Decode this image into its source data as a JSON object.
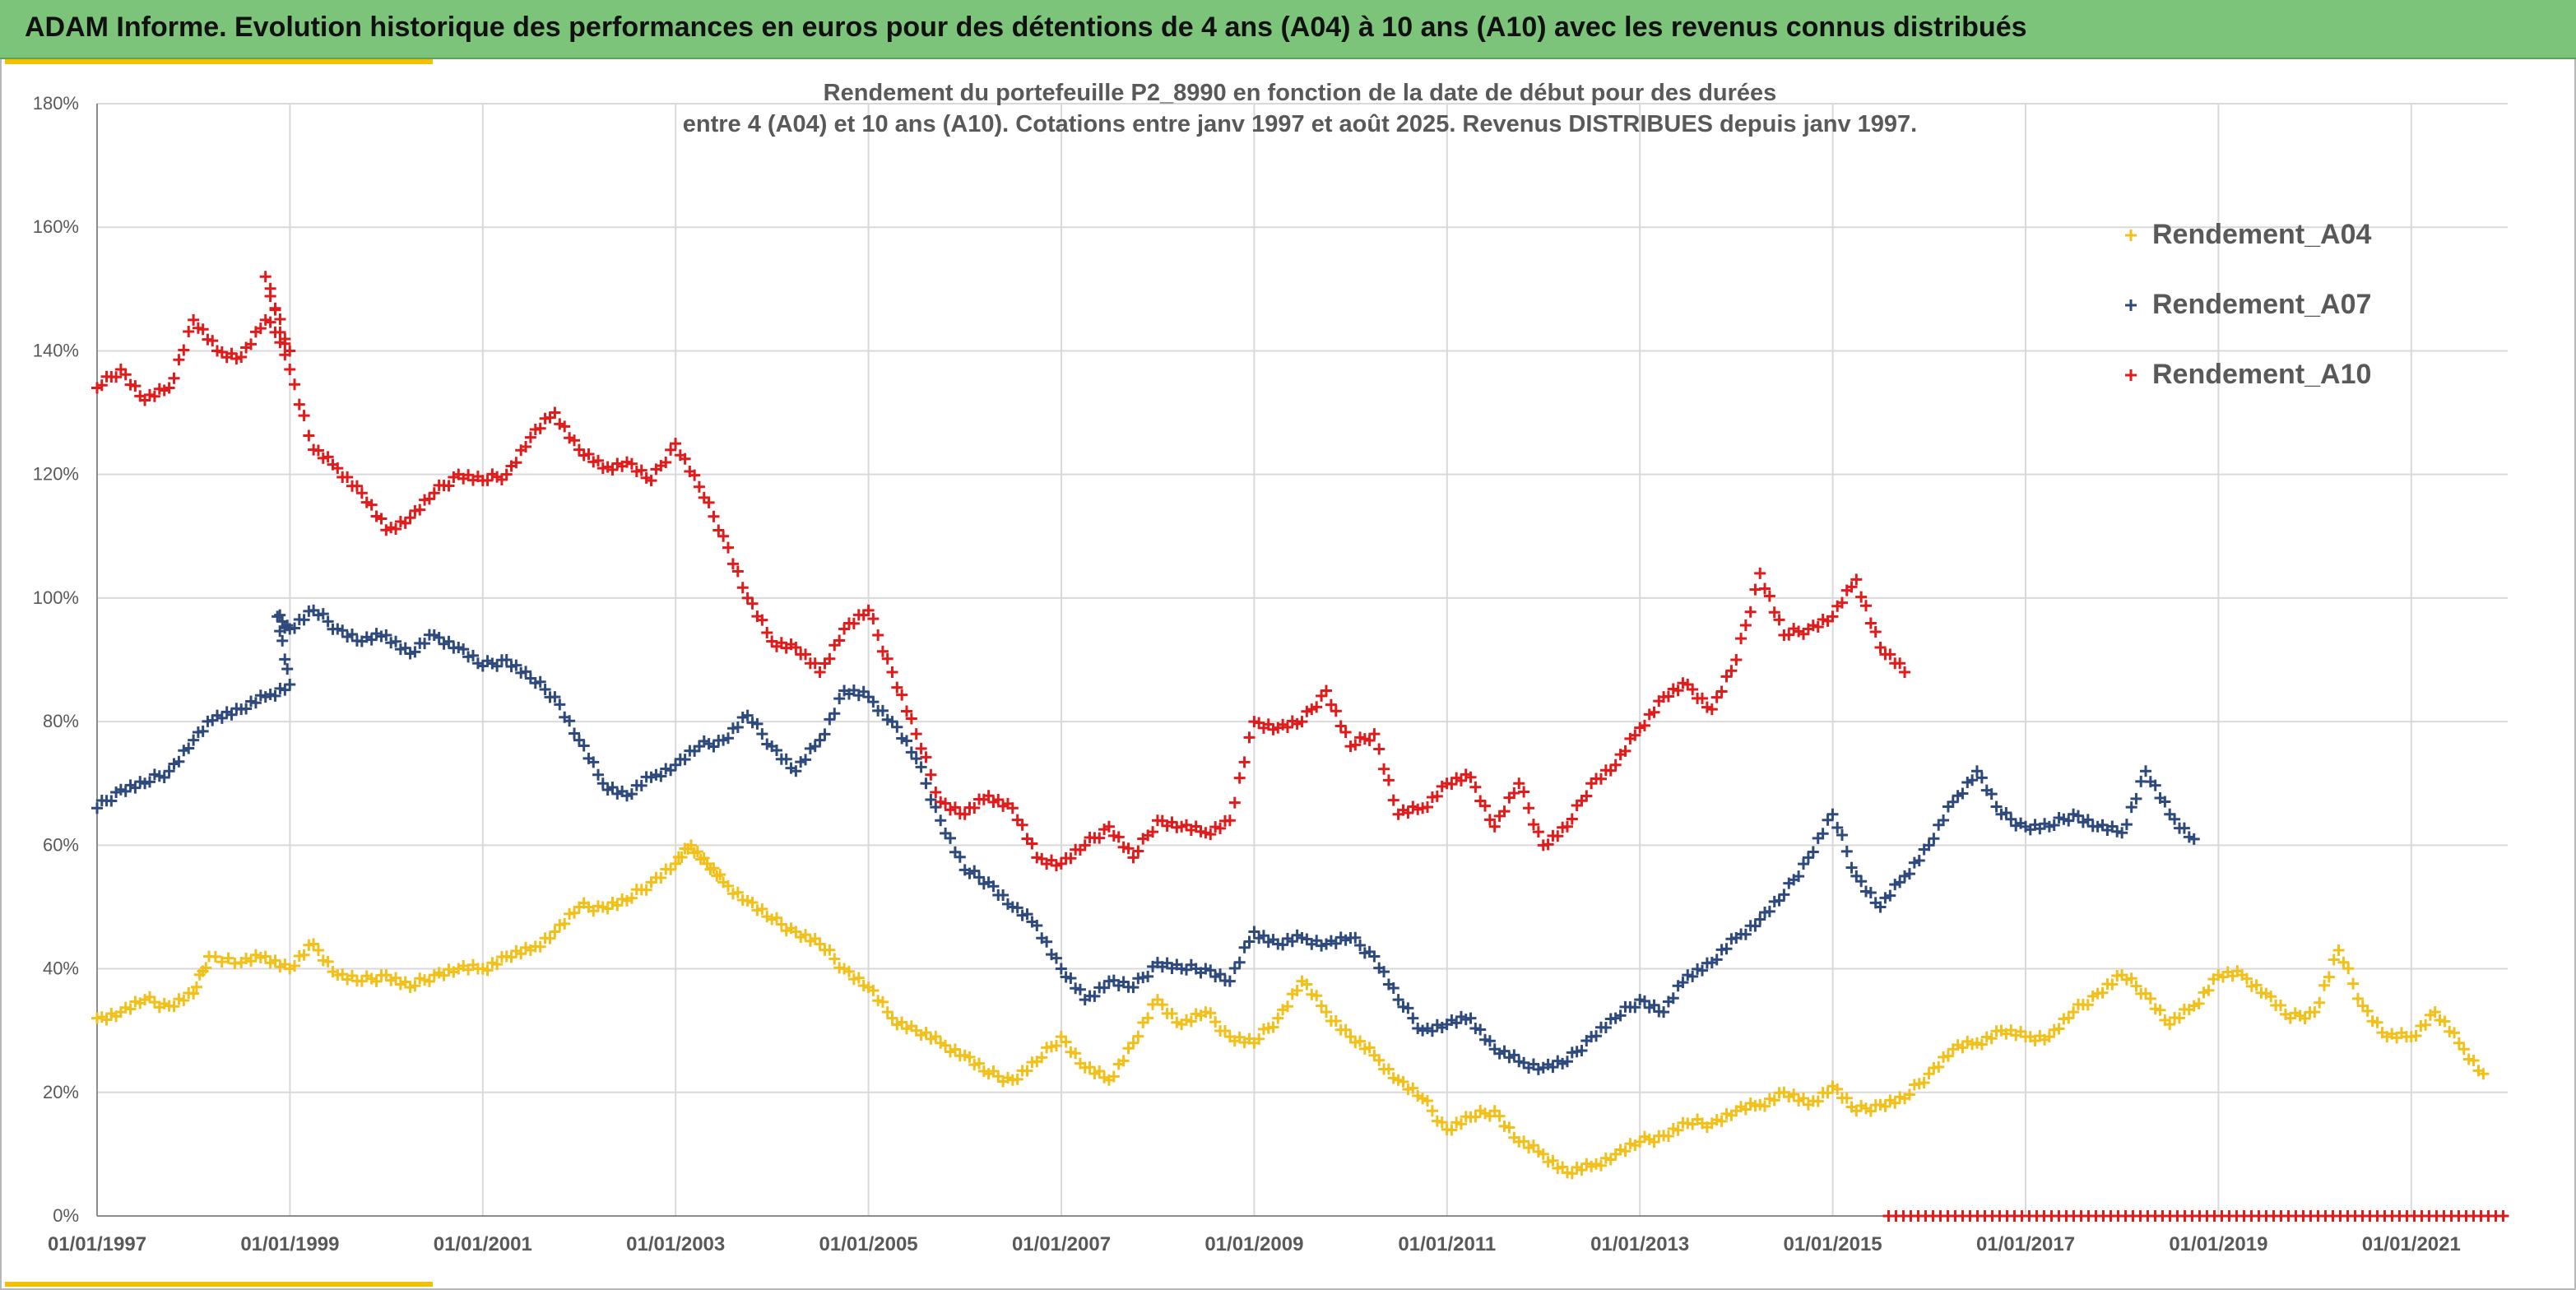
{
  "banner": {
    "title": "ADAM Informe. Evolution historique des performances en euros pour des détentions de 4 ans (A04) à 10 ans (A10) avec les revenus connus distribués"
  },
  "colors": {
    "banner_bg": "#7cc47a",
    "accent": "#f2c000",
    "A04": "#f2c01a",
    "A07": "#2e4a7d",
    "A10": "#e01b1b"
  },
  "chart_data": {
    "type": "scatter",
    "title_line1": "Rendement du portefeuille P2_8990 en fonction de la date de début pour des durées",
    "title_line2": "entre 4 (A04) et 10 ans (A10). Cotations entre janv 1997 et août 2025. Revenus DISTRIBUES depuis janv 1997.",
    "marker": "+",
    "grid": true,
    "legend_position": "top-right",
    "x_range": [
      "1997-01-01",
      "2022-01-01"
    ],
    "y_range": [
      0,
      180
    ],
    "y_unit": "%",
    "x_ticks": [
      "01/01/1997",
      "01/01/1999",
      "01/01/2001",
      "01/01/2003",
      "01/01/2005",
      "01/01/2007",
      "01/01/2009",
      "01/01/2011",
      "01/01/2013",
      "01/01/2015",
      "01/01/2017",
      "01/01/2019",
      "01/01/2021"
    ],
    "y_ticks": [
      "0%",
      "20%",
      "40%",
      "60%",
      "80%",
      "100%",
      "120%",
      "140%",
      "160%",
      "180%"
    ],
    "series": [
      {
        "name": "Rendement_A04",
        "color": "#f2c01a",
        "points": [
          [
            "1997-01-01",
            32
          ],
          [
            "1997-04-01",
            33
          ],
          [
            "1997-07-01",
            35
          ],
          [
            "1997-10-01",
            34
          ],
          [
            "1998-01-01",
            36
          ],
          [
            "1998-03-01",
            42
          ],
          [
            "1998-07-01",
            41
          ],
          [
            "1998-10-01",
            42
          ],
          [
            "1999-01-01",
            40
          ],
          [
            "1999-04-01",
            44
          ],
          [
            "1999-07-01",
            39
          ],
          [
            "1999-10-01",
            38
          ],
          [
            "2000-01-01",
            39
          ],
          [
            "2000-04-01",
            37
          ],
          [
            "2000-07-01",
            39
          ],
          [
            "2000-10-01",
            40
          ],
          [
            "2001-01-01",
            40
          ],
          [
            "2001-04-01",
            42
          ],
          [
            "2001-07-01",
            43
          ],
          [
            "2001-10-01",
            46
          ],
          [
            "2002-01-01",
            50
          ],
          [
            "2002-04-01",
            50
          ],
          [
            "2002-07-01",
            51
          ],
          [
            "2002-10-01",
            54
          ],
          [
            "2003-01-01",
            57
          ],
          [
            "2003-03-01",
            60
          ],
          [
            "2003-05-01",
            57
          ],
          [
            "2003-07-01",
            54
          ],
          [
            "2003-10-01",
            51
          ],
          [
            "2004-01-01",
            48
          ],
          [
            "2004-04-01",
            46
          ],
          [
            "2004-07-01",
            44
          ],
          [
            "2004-10-01",
            40
          ],
          [
            "2005-01-01",
            37
          ],
          [
            "2005-04-01",
            32
          ],
          [
            "2005-07-01",
            30
          ],
          [
            "2005-10-01",
            28
          ],
          [
            "2006-01-01",
            26
          ],
          [
            "2006-04-01",
            23
          ],
          [
            "2006-07-01",
            22
          ],
          [
            "2006-10-01",
            25
          ],
          [
            "2007-01-01",
            29
          ],
          [
            "2007-04-01",
            24
          ],
          [
            "2007-07-01",
            22
          ],
          [
            "2007-10-01",
            28
          ],
          [
            "2008-01-01",
            35
          ],
          [
            "2008-04-01",
            31
          ],
          [
            "2008-07-01",
            33
          ],
          [
            "2008-10-01",
            29
          ],
          [
            "2009-01-01",
            28
          ],
          [
            "2009-04-01",
            32
          ],
          [
            "2009-07-01",
            38
          ],
          [
            "2009-10-01",
            33
          ],
          [
            "2010-01-01",
            29
          ],
          [
            "2010-04-01",
            26
          ],
          [
            "2010-07-01",
            22
          ],
          [
            "2010-10-01",
            19
          ],
          [
            "2011-01-01",
            14
          ],
          [
            "2011-04-01",
            16
          ],
          [
            "2011-07-01",
            17
          ],
          [
            "2011-10-01",
            12
          ],
          [
            "2012-01-01",
            10
          ],
          [
            "2012-04-01",
            7
          ],
          [
            "2012-07-01",
            8
          ],
          [
            "2012-10-01",
            10
          ],
          [
            "2013-01-01",
            12
          ],
          [
            "2013-04-01",
            13
          ],
          [
            "2013-07-01",
            15
          ],
          [
            "2013-10-01",
            15
          ],
          [
            "2014-01-01",
            17
          ],
          [
            "2014-04-01",
            18
          ],
          [
            "2014-07-01",
            20
          ],
          [
            "2014-10-01",
            18
          ],
          [
            "2015-01-01",
            21
          ],
          [
            "2015-04-01",
            17
          ],
          [
            "2015-07-01",
            18
          ],
          [
            "2015-10-01",
            19
          ],
          [
            "2016-01-01",
            23
          ],
          [
            "2016-04-01",
            27
          ],
          [
            "2016-07-01",
            28
          ],
          [
            "2016-10-01",
            30
          ],
          [
            "2017-01-01",
            29
          ],
          [
            "2017-04-01",
            29
          ],
          [
            "2017-07-01",
            33
          ],
          [
            "2017-10-01",
            36
          ],
          [
            "2018-01-01",
            39
          ],
          [
            "2018-04-01",
            36
          ],
          [
            "2018-07-01",
            31
          ],
          [
            "2018-10-01",
            34
          ],
          [
            "2019-01-01",
            39
          ],
          [
            "2019-04-01",
            39
          ],
          [
            "2019-07-01",
            36
          ],
          [
            "2019-10-01",
            32
          ],
          [
            "2020-01-01",
            33
          ],
          [
            "2020-04-01",
            43
          ],
          [
            "2020-07-01",
            34
          ],
          [
            "2020-10-01",
            29
          ],
          [
            "2021-01-01",
            29
          ],
          [
            "2021-04-01",
            33
          ],
          [
            "2021-07-01",
            28
          ],
          [
            "2021-10-01",
            23
          ]
        ]
      },
      {
        "name": "Rendement_A07",
        "color": "#2e4a7d",
        "points": [
          [
            "1997-01-01",
            66
          ],
          [
            "1997-04-01",
            69
          ],
          [
            "1997-07-01",
            70
          ],
          [
            "1997-10-01",
            72
          ],
          [
            "1998-01-01",
            77
          ],
          [
            "1998-04-01",
            81
          ],
          [
            "1998-07-01",
            82
          ],
          [
            "1998-10-01",
            84
          ],
          [
            "1999-01-01",
            86
          ],
          [
            "1998-11-15",
            97
          ],
          [
            "1999-01-01",
            95
          ],
          [
            "1999-04-01",
            98
          ],
          [
            "1999-07-01",
            95
          ],
          [
            "1999-10-01",
            93
          ],
          [
            "2000-01-01",
            94
          ],
          [
            "2000-04-01",
            91
          ],
          [
            "2000-07-01",
            94
          ],
          [
            "2000-10-01",
            92
          ],
          [
            "2001-01-01",
            89
          ],
          [
            "2001-04-01",
            90
          ],
          [
            "2001-07-01",
            87
          ],
          [
            "2001-10-01",
            84
          ],
          [
            "2002-01-01",
            77
          ],
          [
            "2002-04-01",
            70
          ],
          [
            "2002-07-01",
            68
          ],
          [
            "2002-10-01",
            71
          ],
          [
            "2003-01-01",
            73
          ],
          [
            "2003-04-01",
            76
          ],
          [
            "2003-07-01",
            77
          ],
          [
            "2003-10-01",
            81
          ],
          [
            "2004-01-01",
            76
          ],
          [
            "2004-04-01",
            72
          ],
          [
            "2004-07-01",
            77
          ],
          [
            "2004-10-01",
            85
          ],
          [
            "2005-01-01",
            84
          ],
          [
            "2005-04-01",
            80
          ],
          [
            "2005-07-01",
            74
          ],
          [
            "2005-10-01",
            64
          ],
          [
            "2006-01-01",
            56
          ],
          [
            "2006-04-01",
            54
          ],
          [
            "2006-07-01",
            50
          ],
          [
            "2006-10-01",
            47
          ],
          [
            "2007-01-01",
            40
          ],
          [
            "2007-04-01",
            35
          ],
          [
            "2007-07-01",
            38
          ],
          [
            "2007-10-01",
            37
          ],
          [
            "2008-01-01",
            41
          ],
          [
            "2008-04-01",
            40
          ],
          [
            "2008-07-01",
            40
          ],
          [
            "2008-10-01",
            38
          ],
          [
            "2009-01-01",
            46
          ],
          [
            "2009-04-01",
            44
          ],
          [
            "2009-07-01",
            45
          ],
          [
            "2009-10-01",
            44
          ],
          [
            "2010-01-01",
            45
          ],
          [
            "2010-04-01",
            42
          ],
          [
            "2010-07-01",
            35
          ],
          [
            "2010-10-01",
            30
          ],
          [
            "2011-01-01",
            31
          ],
          [
            "2011-04-01",
            32
          ],
          [
            "2011-07-01",
            27
          ],
          [
            "2011-10-01",
            25
          ],
          [
            "2012-01-01",
            24
          ],
          [
            "2012-04-01",
            25
          ],
          [
            "2012-07-01",
            29
          ],
          [
            "2012-10-01",
            32
          ],
          [
            "2013-01-01",
            35
          ],
          [
            "2013-04-01",
            33
          ],
          [
            "2013-07-01",
            39
          ],
          [
            "2013-10-01",
            41
          ],
          [
            "2014-01-01",
            45
          ],
          [
            "2014-04-01",
            48
          ],
          [
            "2014-07-01",
            52
          ],
          [
            "2014-10-01",
            58
          ],
          [
            "2015-01-01",
            65
          ],
          [
            "2015-04-01",
            55
          ],
          [
            "2015-07-01",
            50
          ],
          [
            "2015-10-01",
            55
          ],
          [
            "2016-01-01",
            60
          ],
          [
            "2016-04-01",
            67
          ],
          [
            "2016-07-01",
            72
          ],
          [
            "2016-10-01",
            65
          ],
          [
            "2017-01-01",
            63
          ],
          [
            "2017-04-01",
            63
          ],
          [
            "2017-07-01",
            65
          ],
          [
            "2017-10-01",
            63
          ],
          [
            "2018-01-01",
            62
          ],
          [
            "2018-04-01",
            72
          ],
          [
            "2018-07-01",
            65
          ],
          [
            "2018-10-01",
            61
          ]
        ]
      },
      {
        "name": "Rendement_A10",
        "color": "#e01b1b",
        "points": [
          [
            "1997-01-01",
            134
          ],
          [
            "1997-04-01",
            137
          ],
          [
            "1997-07-01",
            132
          ],
          [
            "1997-10-01",
            134
          ],
          [
            "1998-01-01",
            145
          ],
          [
            "1998-04-01",
            140
          ],
          [
            "1998-07-01",
            139
          ],
          [
            "1998-10-01",
            145
          ],
          [
            "1999-01-01",
            140
          ],
          [
            "1998-10-01",
            152
          ],
          [
            "1999-01-01",
            137
          ],
          [
            "1999-04-01",
            124
          ],
          [
            "1999-07-01",
            121
          ],
          [
            "1999-10-01",
            117
          ],
          [
            "2000-01-01",
            111
          ],
          [
            "2000-04-01",
            113
          ],
          [
            "2000-07-01",
            117
          ],
          [
            "2000-10-01",
            120
          ],
          [
            "2001-01-01",
            119
          ],
          [
            "2001-04-01",
            120
          ],
          [
            "2001-07-01",
            126
          ],
          [
            "2001-10-01",
            130
          ],
          [
            "2002-01-01",
            124
          ],
          [
            "2002-04-01",
            121
          ],
          [
            "2002-07-01",
            122
          ],
          [
            "2002-10-01",
            119
          ],
          [
            "2003-01-01",
            125
          ],
          [
            "2003-04-01",
            118
          ],
          [
            "2003-07-01",
            110
          ],
          [
            "2003-10-01",
            100
          ],
          [
            "2004-01-01",
            93
          ],
          [
            "2004-04-01",
            92
          ],
          [
            "2004-07-01",
            88
          ],
          [
            "2004-10-01",
            95
          ],
          [
            "2005-01-01",
            98
          ],
          [
            "2005-04-01",
            88
          ],
          [
            "2005-07-01",
            78
          ],
          [
            "2005-10-01",
            67
          ],
          [
            "2006-01-01",
            65
          ],
          [
            "2006-04-01",
            68
          ],
          [
            "2006-07-01",
            66
          ],
          [
            "2006-10-01",
            58
          ],
          [
            "2007-01-01",
            57
          ],
          [
            "2007-04-01",
            60
          ],
          [
            "2007-07-01",
            63
          ],
          [
            "2007-10-01",
            58
          ],
          [
            "2008-01-01",
            64
          ],
          [
            "2008-04-01",
            63
          ],
          [
            "2008-07-01",
            62
          ],
          [
            "2008-10-01",
            64
          ],
          [
            "2009-01-01",
            80
          ],
          [
            "2009-04-01",
            79
          ],
          [
            "2009-07-01",
            80
          ],
          [
            "2009-10-01",
            85
          ],
          [
            "2010-01-01",
            76
          ],
          [
            "2010-04-01",
            78
          ],
          [
            "2010-07-01",
            65
          ],
          [
            "2010-10-01",
            66
          ],
          [
            "2011-01-01",
            70
          ],
          [
            "2011-04-01",
            71
          ],
          [
            "2011-07-01",
            63
          ],
          [
            "2011-10-01",
            70
          ],
          [
            "2012-01-01",
            60
          ],
          [
            "2012-04-01",
            63
          ],
          [
            "2012-07-01",
            70
          ],
          [
            "2012-10-01",
            73
          ],
          [
            "2013-01-01",
            79
          ],
          [
            "2013-04-01",
            84
          ],
          [
            "2013-07-01",
            86
          ],
          [
            "2013-10-01",
            82
          ],
          [
            "2014-01-01",
            90
          ],
          [
            "2014-04-01",
            104
          ],
          [
            "2014-07-01",
            94
          ],
          [
            "2014-10-01",
            95
          ],
          [
            "2015-01-01",
            97
          ],
          [
            "2015-04-01",
            103
          ],
          [
            "2015-07-01",
            92
          ],
          [
            "2015-10-01",
            88
          ]
        ]
      }
    ],
    "zero_band": {
      "series": "Rendement_A10",
      "from": "2015-08-01",
      "to": "2022-01-01",
      "value": 0
    }
  }
}
